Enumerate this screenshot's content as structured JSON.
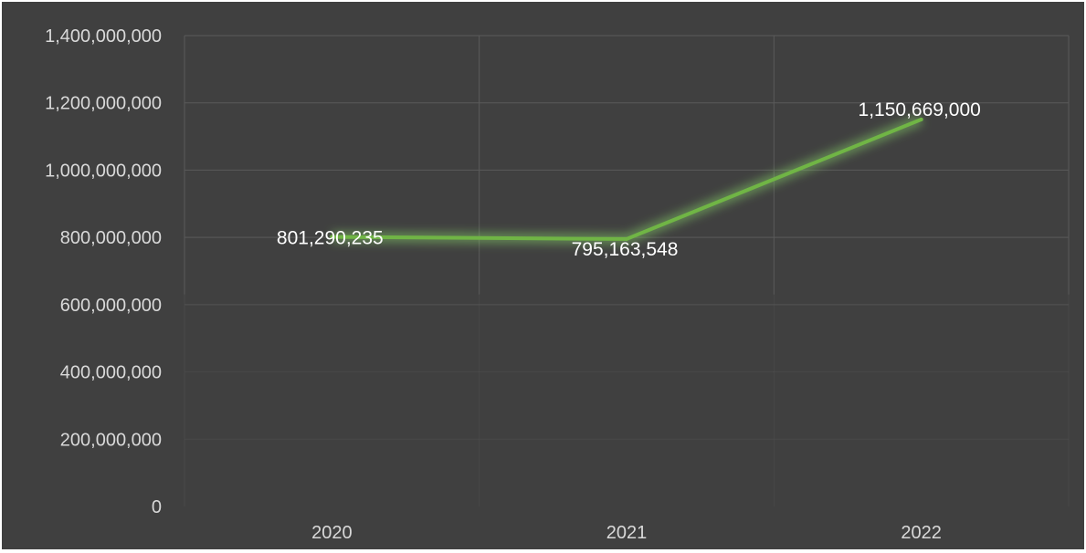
{
  "colors": {
    "background": "#404040",
    "gridline": "#5a5a5a",
    "series_line": "#70b545",
    "series_glow": "#8fe06a",
    "tick_label": "#d9d9d9",
    "data_label": "#ffffff"
  },
  "chart_data": {
    "type": "line",
    "title": "",
    "xlabel": "",
    "ylabel": "",
    "categories": [
      "2020",
      "2021",
      "2022"
    ],
    "series": [
      {
        "values": [
          801290235,
          795163548,
          1150669000
        ]
      }
    ],
    "data_labels": [
      "801,290,235",
      "795,163,548",
      "1,150,669,000"
    ],
    "ylim": [
      0,
      1400000000
    ],
    "y_ticks": [
      0,
      200000000,
      400000000,
      600000000,
      800000000,
      1000000000,
      1200000000,
      1400000000
    ],
    "y_tick_labels": [
      "0",
      "200,000,000",
      "400,000,000",
      "600,000,000",
      "800,000,000",
      "1,000,000,000",
      "1,200,000,000",
      "1,400,000,000"
    ],
    "grid": true,
    "legend": "none"
  }
}
